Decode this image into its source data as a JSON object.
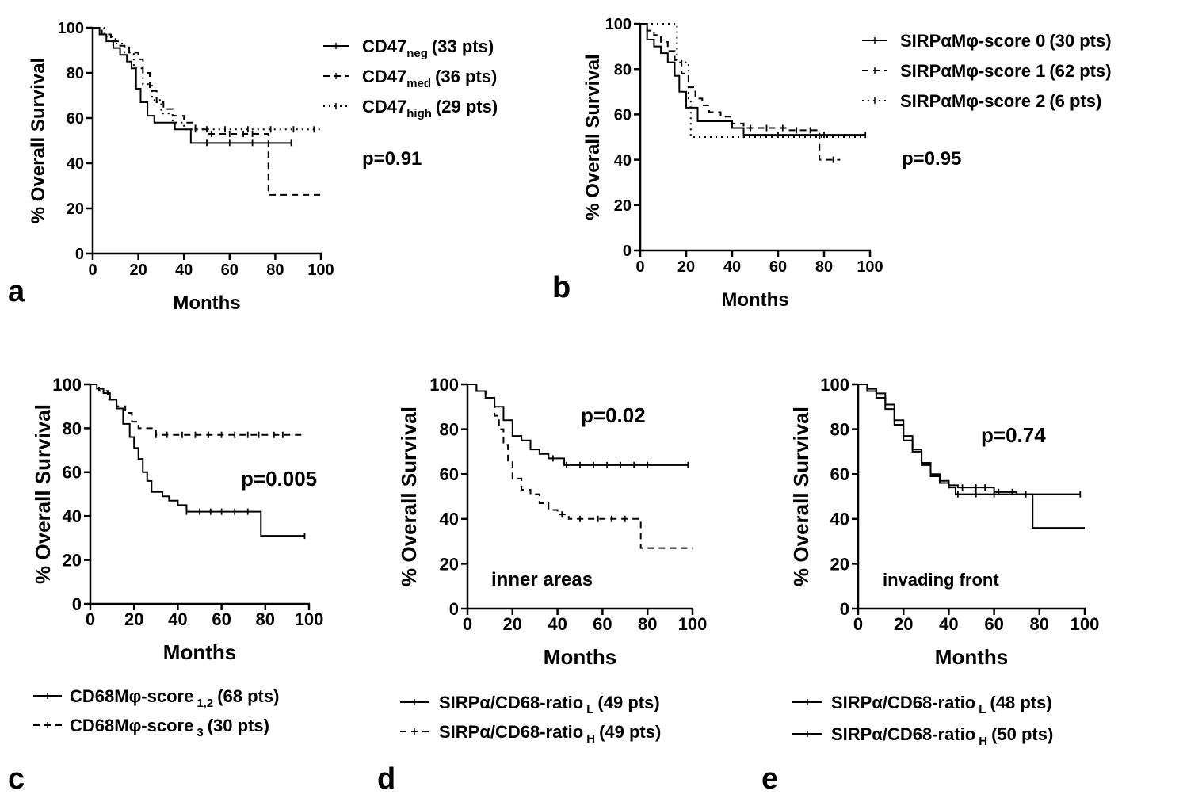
{
  "chart_data": [
    {
      "panel": "a",
      "type": "line",
      "subtype": "kaplan-meier",
      "xlabel": "Months",
      "ylabel": "% Overall Survival",
      "xlim": [
        0,
        100
      ],
      "ylim": [
        0,
        100
      ],
      "xticks": [
        "0",
        "20",
        "40",
        "60",
        "80",
        "100"
      ],
      "yticks": [
        "0",
        "20",
        "40",
        "60",
        "80",
        "100"
      ],
      "pvalue": "p=0.91",
      "legend_position": "right",
      "series": [
        {
          "base": "CD47",
          "sub": "neg",
          "count": "(33 pts)",
          "style": "solid",
          "x": [
            0,
            3,
            6,
            9,
            12,
            15,
            17,
            19,
            21,
            24,
            27,
            30,
            33,
            36,
            40,
            43,
            50,
            60,
            70,
            80,
            87
          ],
          "y": [
            100,
            97,
            94,
            91,
            88,
            85,
            82,
            73,
            67,
            61,
            58,
            58,
            58,
            55,
            55,
            49,
            49,
            49,
            49,
            49,
            49
          ],
          "censor": [
            50,
            60,
            70,
            87
          ]
        },
        {
          "base": "CD47",
          "sub": "med",
          "count": "(36 pts)",
          "style": "dashed",
          "x": [
            0,
            4,
            8,
            12,
            16,
            20,
            22,
            25,
            28,
            31,
            35,
            40,
            45,
            50,
            55,
            60,
            65,
            70,
            76,
            77,
            100
          ],
          "y": [
            100,
            97,
            94,
            92,
            89,
            86,
            80,
            72,
            67,
            64,
            61,
            58,
            55,
            53,
            53,
            53,
            53,
            53,
            53,
            26,
            26
          ],
          "censor": [
            45,
            52,
            60,
            66,
            70
          ]
        },
        {
          "base": "CD47",
          "sub": "high",
          "count": "(29 pts)",
          "style": "dotted",
          "x": [
            0,
            5,
            10,
            14,
            18,
            22,
            26,
            30,
            35,
            40,
            45,
            50,
            60,
            70,
            80,
            90,
            100
          ],
          "y": [
            100,
            96,
            93,
            89,
            82,
            75,
            68,
            62,
            58,
            55,
            55,
            55,
            55,
            55,
            55,
            55,
            55
          ],
          "censor": [
            50,
            58,
            68,
            78,
            88,
            97
          ]
        }
      ]
    },
    {
      "panel": "b",
      "type": "line",
      "subtype": "kaplan-meier",
      "xlabel": "Months",
      "ylabel": "% Overall Survival",
      "xlim": [
        0,
        100
      ],
      "ylim": [
        0,
        100
      ],
      "xticks": [
        "0",
        "20",
        "40",
        "60",
        "80",
        "100"
      ],
      "yticks": [
        "0",
        "20",
        "40",
        "60",
        "80",
        "100"
      ],
      "pvalue": "p=0.95",
      "legend_position": "right",
      "series": [
        {
          "base": "SIRPαMφ-score 0",
          "sub": "",
          "count": "(30 pts)",
          "style": "solid",
          "x": [
            0,
            3,
            6,
            9,
            12,
            15,
            17,
            20,
            25,
            30,
            35,
            40,
            45,
            60,
            80,
            98
          ],
          "y": [
            100,
            93,
            90,
            87,
            83,
            77,
            70,
            63,
            57,
            57,
            57,
            54,
            51,
            51,
            51,
            51
          ],
          "censor": [
            45,
            60,
            80,
            98
          ]
        },
        {
          "base": "SIRPαMφ-score 1",
          "sub": "",
          "count": "(62 pts)",
          "style": "dashed",
          "x": [
            0,
            3,
            6,
            9,
            12,
            15,
            18,
            21,
            24,
            27,
            30,
            35,
            40,
            45,
            55,
            65,
            77,
            78,
            87
          ],
          "y": [
            100,
            97,
            95,
            92,
            88,
            84,
            78,
            72,
            67,
            64,
            61,
            59,
            56,
            54,
            54,
            53,
            53,
            40,
            40
          ],
          "censor": [
            48,
            55,
            62,
            68,
            74,
            84
          ]
        },
        {
          "base": "SIRPαMφ-score 2",
          "sub": "",
          "count": "(6 pts)",
          "style": "dotted",
          "x": [
            0,
            12,
            16,
            21,
            22,
            98
          ],
          "y": [
            100,
            100,
            83,
            67,
            50,
            50
          ],
          "censor": []
        }
      ]
    },
    {
      "panel": "c",
      "type": "line",
      "subtype": "kaplan-meier",
      "xlabel": "Months",
      "ylabel": "% Overall Survival",
      "xlim": [
        0,
        100
      ],
      "ylim": [
        0,
        100
      ],
      "xticks": [
        "0",
        "20",
        "40",
        "60",
        "80",
        "100"
      ],
      "yticks": [
        "0",
        "20",
        "40",
        "60",
        "80",
        "100"
      ],
      "pvalue": "p=0.005",
      "annotation": "",
      "legend_position": "bottom",
      "series": [
        {
          "base": "CD68Mφ-score",
          "sub": "1,2",
          "count": "(68 pts)",
          "style": "solid",
          "x": [
            0,
            3,
            6,
            9,
            12,
            15,
            18,
            20,
            22,
            24,
            26,
            28,
            30,
            33,
            36,
            40,
            44,
            50,
            60,
            70,
            77,
            78,
            98
          ],
          "y": [
            100,
            98,
            96,
            93,
            89,
            82,
            76,
            71,
            66,
            60,
            56,
            51,
            51,
            49,
            47,
            45,
            42,
            42,
            42,
            42,
            42,
            31,
            31
          ],
          "censor": [
            44,
            50,
            55,
            60,
            66,
            72,
            98
          ]
        },
        {
          "base": "CD68Mφ-score",
          "sub": "3",
          "count": "(30 pts)",
          "style": "dashed",
          "x": [
            0,
            4,
            8,
            12,
            16,
            19,
            22,
            30,
            40,
            50,
            60,
            70,
            80,
            90,
            98
          ],
          "y": [
            100,
            97,
            93,
            90,
            87,
            83,
            80,
            77,
            77,
            77,
            77,
            77,
            77,
            77,
            77
          ],
          "censor": [
            30,
            35,
            42,
            48,
            54,
            60,
            66,
            72,
            77,
            84,
            88
          ]
        }
      ]
    },
    {
      "panel": "d",
      "type": "line",
      "subtype": "kaplan-meier",
      "xlabel": "Months",
      "ylabel": "% Overall Survival",
      "xlim": [
        0,
        100
      ],
      "ylim": [
        0,
        100
      ],
      "xticks": [
        "0",
        "20",
        "40",
        "60",
        "80",
        "100"
      ],
      "yticks": [
        "0",
        "20",
        "40",
        "60",
        "80",
        "100"
      ],
      "pvalue": "p=0.02",
      "annotation": "inner areas",
      "legend_position": "bottom",
      "series": [
        {
          "base": "SIRPα/CD68-ratio",
          "sub": "L",
          "count": "(49 pts)",
          "style": "solid",
          "x": [
            0,
            4,
            8,
            12,
            16,
            20,
            24,
            28,
            32,
            36,
            40,
            43,
            50,
            60,
            70,
            80,
            98
          ],
          "y": [
            100,
            97,
            94,
            90,
            84,
            77,
            75,
            71,
            69,
            67,
            67,
            64,
            64,
            64,
            64,
            64,
            64
          ],
          "censor": [
            38,
            44,
            50,
            56,
            62,
            68,
            74,
            80,
            98
          ]
        },
        {
          "base": "SIRPα/CD68-ratio",
          "sub": "H",
          "count": "(49 pts)",
          "style": "dashed",
          "x": [
            0,
            4,
            8,
            12,
            14,
            16,
            18,
            20,
            24,
            28,
            32,
            36,
            40,
            45,
            55,
            65,
            76,
            77,
            100
          ],
          "y": [
            100,
            97,
            94,
            86,
            80,
            73,
            66,
            58,
            53,
            51,
            47,
            44,
            42,
            40,
            40,
            40,
            40,
            27,
            27
          ],
          "censor": [
            42,
            50,
            58,
            64,
            70
          ]
        }
      ]
    },
    {
      "panel": "e",
      "type": "line",
      "subtype": "kaplan-meier",
      "xlabel": "Months",
      "ylabel": "% Overall Survival",
      "xlim": [
        0,
        100
      ],
      "ylim": [
        0,
        100
      ],
      "xticks": [
        "0",
        "20",
        "40",
        "60",
        "80",
        "100"
      ],
      "yticks": [
        "0",
        "20",
        "40",
        "60",
        "80",
        "100"
      ],
      "pvalue": "p=0.74",
      "annotation": "invading front",
      "legend_position": "bottom",
      "series": [
        {
          "base": "SIRPα/CD68-ratio",
          "sub": "L",
          "count": "(48 pts)",
          "style": "solid",
          "x": [
            0,
            4,
            8,
            12,
            16,
            20,
            24,
            28,
            32,
            36,
            40,
            43,
            50,
            60,
            70,
            76,
            77,
            100
          ],
          "y": [
            100,
            98,
            96,
            91,
            84,
            77,
            71,
            65,
            59,
            56,
            54,
            51,
            51,
            51,
            51,
            51,
            36,
            36
          ],
          "censor": [
            44,
            52,
            60
          ]
        },
        {
          "base": "SIRPα/CD68-ratio",
          "sub": "H",
          "count": "(50 pts)",
          "style": "solid",
          "x": [
            0,
            4,
            8,
            12,
            16,
            20,
            24,
            28,
            32,
            36,
            40,
            44,
            50,
            60,
            70,
            78,
            98
          ],
          "y": [
            100,
            97,
            94,
            89,
            82,
            75,
            70,
            64,
            60,
            57,
            55,
            54,
            54,
            52,
            51,
            51,
            51
          ],
          "censor": [
            40,
            46,
            52,
            56,
            62,
            68,
            74,
            98
          ]
        }
      ]
    }
  ],
  "panel_labels": {
    "a": "a",
    "b": "b",
    "c": "c",
    "d": "d",
    "e": "e"
  }
}
